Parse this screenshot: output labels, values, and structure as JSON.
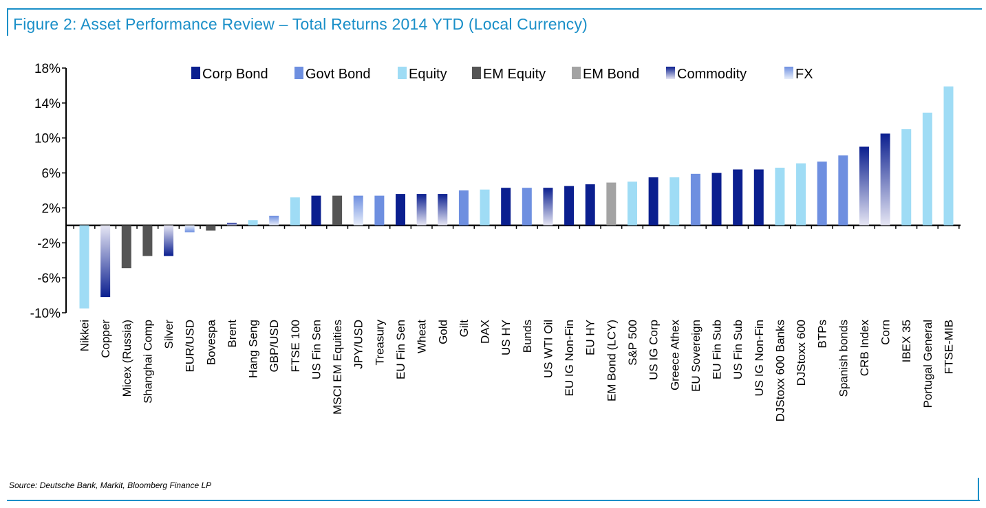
{
  "title": "Figure 2: Asset Performance Review – Total Returns 2014 YTD (Local Currency)",
  "source": "Source: Deutsche Bank, Markit, Bloomberg Finance LP",
  "colors": {
    "frame": "#1a8fc8",
    "Corp Bond": "#0b1f8f",
    "Govt Bond": "#6e8fe0",
    "Equity": "#9fdcf5",
    "EM Equity": "#555555",
    "EM Bond": "#a3a3a3",
    "Commodity": [
      "#0b1f8f",
      "#e6e6f4"
    ],
    "FX": [
      "#6e8fe0",
      "#e8eefa"
    ]
  },
  "legend": [
    "Corp Bond",
    "Govt Bond",
    "Equity",
    "EM Equity",
    "EM Bond",
    "Commodity",
    "FX"
  ],
  "chart_data": {
    "type": "bar",
    "ylim": [
      -10,
      18
    ],
    "yticks": [
      18,
      14,
      10,
      6,
      2,
      -2,
      -6,
      -10
    ],
    "ytick_labels": [
      "18%",
      "14%",
      "10%",
      "6%",
      "2%",
      "-2%",
      "-6%",
      "-10%"
    ],
    "legend_position": "top",
    "grid": false,
    "categories": [
      "Nikkei",
      "Copper",
      "Micex (Russia)",
      "Shanghai Comp",
      "Silver",
      "EUR/USD",
      "Bovespa",
      "Brent",
      "Hang Seng",
      "GBP/USD",
      "FTSE 100",
      "US Fin Sen",
      "MSCI EM Equities",
      "JPY/USD",
      "Treasury",
      "EU Fin Sen",
      "Wheat",
      "Gold",
      "Gilt",
      "DAX",
      "US HY",
      "Bunds",
      "US WTI Oil",
      "EU IG Non-Fin",
      "EU HY",
      "EM Bond (LCY)",
      "S&P 500",
      "US IG Corp",
      "Greece Athex",
      "EU Sovereign",
      "EU Fin Sub",
      "US Fin Sub",
      "US IG Non-Fin",
      "DJStoxx 600 Banks",
      "DJStoxx 600",
      "BTPs",
      "Spanish bonds",
      "CRB Index",
      "Corn",
      "IBEX 35",
      "Portugal General",
      "FTSE-MIB"
    ],
    "values": [
      -9.5,
      -8.2,
      -4.9,
      -3.5,
      -3.5,
      -0.8,
      -0.6,
      0.3,
      0.6,
      1.1,
      3.2,
      3.4,
      3.4,
      3.4,
      3.4,
      3.6,
      3.6,
      3.6,
      4.0,
      4.1,
      4.3,
      4.3,
      4.3,
      4.5,
      4.7,
      4.9,
      5.0,
      5.5,
      5.5,
      5.9,
      6.0,
      6.4,
      6.4,
      6.6,
      7.1,
      7.3,
      8.0,
      9.0,
      10.5,
      11.0,
      12.9,
      15.9
    ],
    "asset_class": [
      "Equity",
      "Commodity",
      "EM Equity",
      "EM Equity",
      "Commodity",
      "FX",
      "EM Equity",
      "Commodity",
      "Equity",
      "FX",
      "Equity",
      "Corp Bond",
      "EM Equity",
      "FX",
      "Govt Bond",
      "Corp Bond",
      "Commodity",
      "Commodity",
      "Govt Bond",
      "Equity",
      "Corp Bond",
      "Govt Bond",
      "Commodity",
      "Corp Bond",
      "Corp Bond",
      "EM Bond",
      "Equity",
      "Corp Bond",
      "Equity",
      "Govt Bond",
      "Corp Bond",
      "Corp Bond",
      "Corp Bond",
      "Equity",
      "Equity",
      "Govt Bond",
      "Govt Bond",
      "Commodity",
      "Commodity",
      "Equity",
      "Equity",
      "Equity"
    ]
  }
}
